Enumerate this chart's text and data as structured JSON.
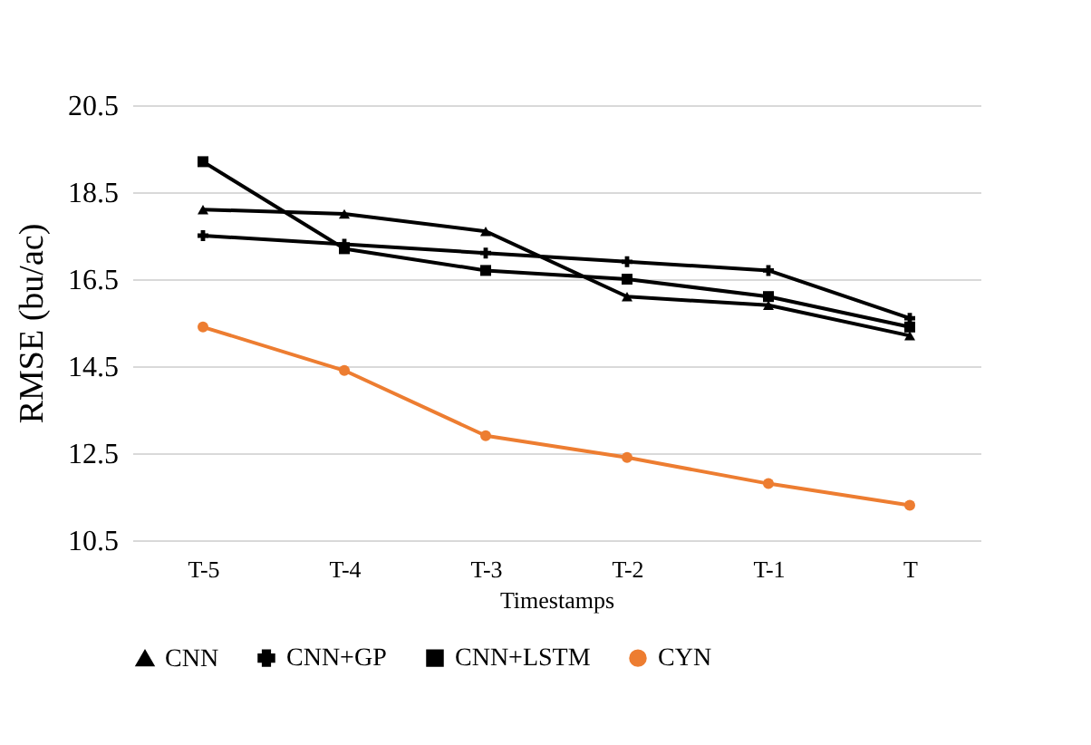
{
  "chart_data": {
    "type": "line",
    "xlabel": "Timestamps",
    "ylabel": "RMSE (bu/ac)",
    "categories": [
      "T-5",
      "T-4",
      "T-3",
      "T-2",
      "T-1",
      "T"
    ],
    "series": [
      {
        "name": "CNN",
        "color": "#000000",
        "marker": "triangle",
        "values": [
          18.1,
          18.0,
          17.6,
          16.1,
          15.9,
          15.2
        ]
      },
      {
        "name": "CNN+GP",
        "color": "#000000",
        "marker": "cross",
        "values": [
          17.5,
          17.3,
          17.1,
          16.9,
          16.7,
          15.6
        ]
      },
      {
        "name": "CNN+LSTM",
        "color": "#000000",
        "marker": "square",
        "values": [
          19.2,
          17.2,
          16.7,
          16.5,
          16.1,
          15.4
        ]
      },
      {
        "name": "CYN",
        "color": "#ed7d31",
        "marker": "circle",
        "values": [
          15.4,
          14.4,
          12.9,
          12.4,
          11.8,
          11.3
        ]
      }
    ],
    "ylim": [
      10.5,
      20.5
    ],
    "yticks": [
      10.5,
      12.5,
      14.5,
      16.5,
      18.5,
      20.5
    ],
    "grid": "y",
    "legend": "bottom",
    "line_style": "solid"
  }
}
